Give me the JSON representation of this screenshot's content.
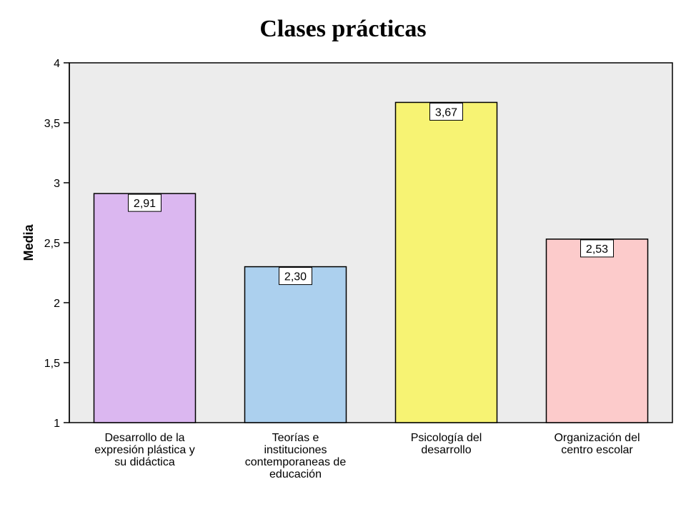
{
  "chart_data": {
    "type": "bar",
    "title": "Clases prácticas",
    "ylabel": "Media",
    "xlabel": "",
    "ylim": [
      1,
      4
    ],
    "yticks": [
      "1",
      "1,5",
      "2",
      "2,5",
      "3",
      "3,5",
      "4"
    ],
    "ytick_values": [
      1,
      1.5,
      2,
      2.5,
      3,
      3.5,
      4
    ],
    "categories": [
      [
        "Desarrollo de la",
        "expresión plástica y",
        "su didáctica"
      ],
      [
        "Teorías e",
        "instituciones",
        "contemporaneas de",
        "educación"
      ],
      [
        "Psicología del",
        "desarrollo"
      ],
      [
        "Organización del",
        "centro escolar"
      ]
    ],
    "values": [
      2.91,
      2.3,
      3.67,
      2.53
    ],
    "value_labels": [
      "2,91",
      "2,30",
      "3,67",
      "2,53"
    ],
    "bar_colors": [
      "#dbb7f0",
      "#acd0ee",
      "#f7f373",
      "#fccbcb"
    ],
    "plot_background": "#ececec",
    "grid": false,
    "legend": "none"
  }
}
